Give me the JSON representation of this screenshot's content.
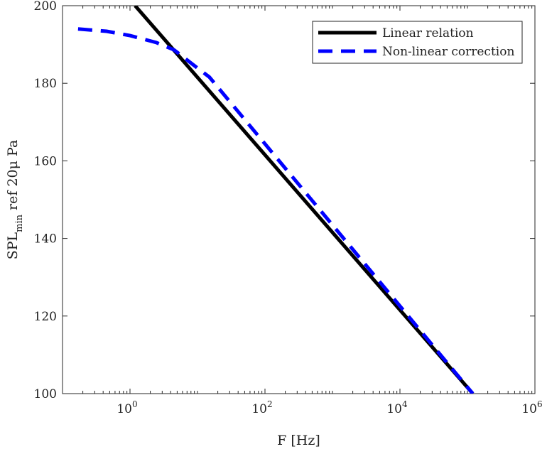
{
  "chart_data": {
    "type": "line",
    "title": "",
    "xlabel": "F [Hz]",
    "ylabel": {
      "main": "SPL",
      "sub": "min",
      "rest": " ref 20μ Pa"
    },
    "xscale": "log",
    "xlim": [
      0.1,
      1000000
    ],
    "ylim": [
      100,
      200
    ],
    "xticks": [
      {
        "value": 1,
        "base": "10",
        "exp": "0"
      },
      {
        "value": 100,
        "base": "10",
        "exp": "2"
      },
      {
        "value": 10000,
        "base": "10",
        "exp": "4"
      },
      {
        "value": 1000000,
        "base": "10",
        "exp": "6"
      }
    ],
    "yticks": [
      100,
      120,
      140,
      160,
      180,
      200
    ],
    "grid": false,
    "legend_position": "top-right",
    "series": [
      {
        "name": "Linear relation",
        "color": "#000000",
        "style": "solid",
        "x": [
          1.19,
          120000
        ],
        "y": [
          200,
          100
        ]
      },
      {
        "name": "Non-linear correction",
        "color": "#0000ff",
        "style": "dashed",
        "x": [
          0.17,
          0.45,
          1,
          2.45,
          4.5,
          8.3,
          15,
          120000
        ],
        "y": [
          194,
          193.4,
          192.3,
          190.5,
          188.6,
          185.0,
          181.6,
          100
        ]
      }
    ]
  }
}
